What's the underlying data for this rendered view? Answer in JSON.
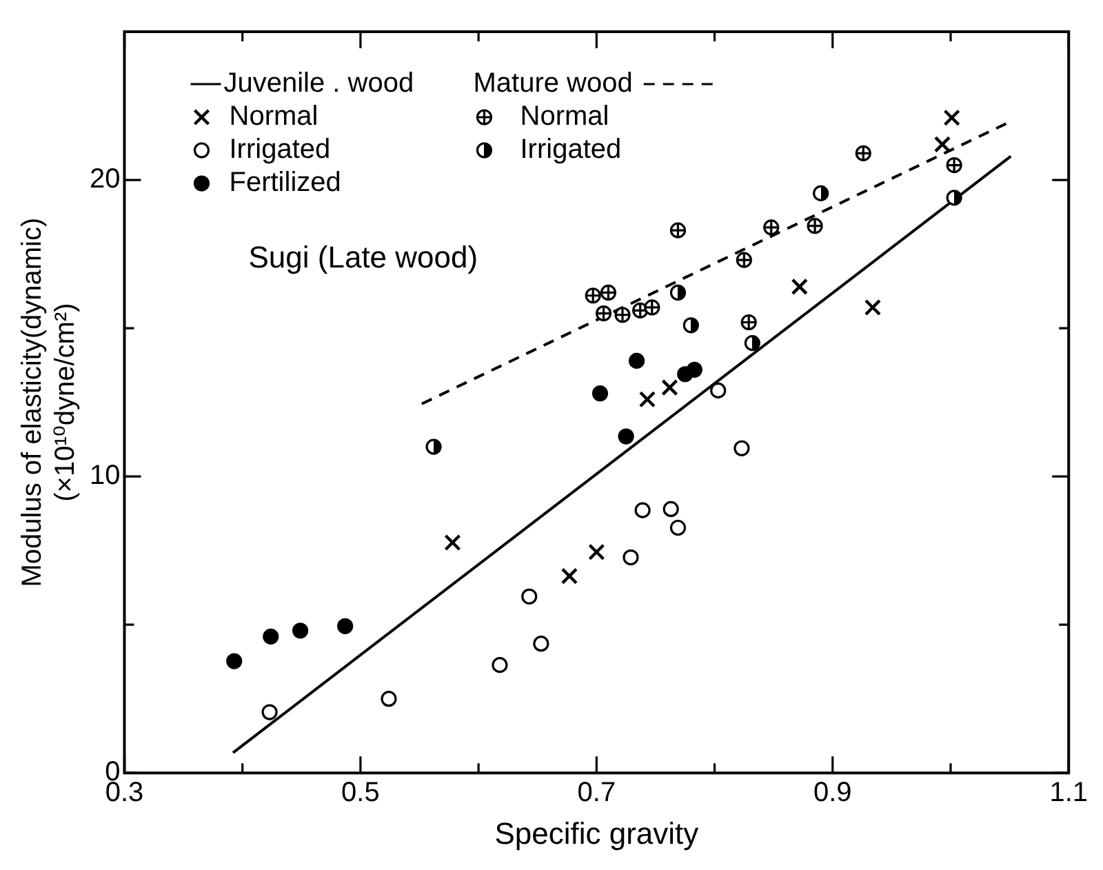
{
  "chart_data": {
    "type": "scatter",
    "xlabel": "Specific gravity",
    "ylabel": "Modulus of elasticity(dynamic)\n(×10¹⁰dyne/cm²)",
    "annotations": [
      "Sugi (Late wood)"
    ],
    "xlim": [
      0.3,
      1.1
    ],
    "ylim": [
      0,
      25
    ],
    "xticks": [
      0.3,
      {
        "value": 0.4,
        "label": null
      },
      0.5,
      {
        "value": 0.6,
        "label": null
      },
      0.7,
      {
        "value": 0.8,
        "label": null
      },
      0.9,
      {
        "value": 1.0,
        "label": null
      },
      1.1
    ],
    "yticks": [
      0,
      {
        "value": 5,
        "label": null
      },
      10,
      {
        "value": 15,
        "label": null
      },
      20
    ],
    "grid": false,
    "legend": "top left",
    "series": [
      {
        "name": "Juvenile . wood",
        "type": "line",
        "line_style": "solid",
        "color": "#000000",
        "x": [
          0.392,
          1.051
        ],
        "values": [
          0.68,
          20.8
        ]
      },
      {
        "name": "Mature wood",
        "type": "line",
        "line_style": "dashed",
        "color": "#000000",
        "x": [
          0.552,
          1.047
        ],
        "values": [
          12.45,
          21.9
        ]
      },
      {
        "name": "Normal",
        "marker": "cross",
        "color": "#000000",
        "x": [
          0.578,
          0.677,
          0.7,
          0.743,
          0.762,
          0.872,
          0.934,
          0.993,
          1.001
        ],
        "values": [
          7.77,
          6.64,
          7.45,
          12.6,
          13.0,
          16.4,
          15.7,
          21.2,
          22.1
        ]
      },
      {
        "name": "Normal",
        "marker": "circle-plus",
        "color": "#000000",
        "x": [
          0.697,
          0.706,
          0.71,
          0.722,
          0.737,
          0.747,
          0.769,
          0.825,
          0.829,
          0.848,
          0.885,
          0.926,
          1.003
        ],
        "values": [
          16.1,
          15.5,
          16.2,
          15.45,
          15.6,
          15.7,
          18.3,
          17.3,
          15.2,
          18.4,
          18.45,
          20.9,
          20.5
        ]
      },
      {
        "name": "Irrigated",
        "marker": "circle-open",
        "color": "#000000",
        "x": [
          0.423,
          0.524,
          0.618,
          0.643,
          0.653,
          0.729,
          0.739,
          0.763,
          0.769,
          0.803,
          0.823
        ],
        "values": [
          2.05,
          2.5,
          3.64,
          5.95,
          4.36,
          7.27,
          8.86,
          8.9,
          8.27,
          12.9,
          10.95
        ]
      },
      {
        "name": "Irrigated",
        "marker": "circle-half",
        "color": "#000000",
        "x": [
          0.562,
          0.769,
          0.78,
          0.832,
          0.89,
          1.003
        ],
        "values": [
          11.0,
          16.2,
          15.1,
          14.5,
          19.55,
          19.4
        ]
      },
      {
        "name": "Fertilized",
        "marker": "circle-filled",
        "color": "#000000",
        "x": [
          0.393,
          0.424,
          0.449,
          0.487,
          0.703,
          0.725,
          0.734,
          0.775,
          0.783
        ],
        "values": [
          3.77,
          4.6,
          4.8,
          4.95,
          12.8,
          11.35,
          13.9,
          13.45,
          13.6
        ]
      }
    ]
  }
}
